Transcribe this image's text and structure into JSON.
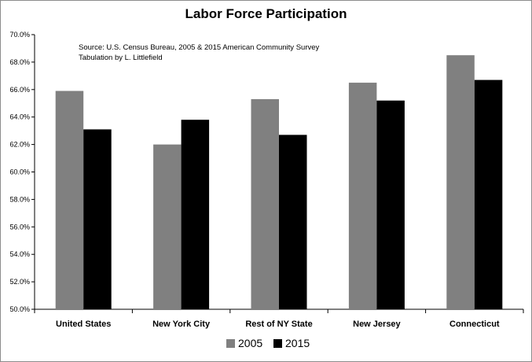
{
  "chart_data": {
    "type": "bar",
    "title": "Labor Force Participation",
    "annotation_lines": [
      "Source:  U.S. Census Bureau, 2005 & 2015 American Community Survey",
      "Tabulation by L. Littlefield"
    ],
    "categories": [
      "United States",
      "New York City",
      "Rest of NY State",
      "New Jersey",
      "Connecticut"
    ],
    "series": [
      {
        "name": "2005",
        "color": "#808080",
        "values": [
          65.9,
          62.0,
          65.3,
          66.5,
          68.5
        ]
      },
      {
        "name": "2015",
        "color": "#000000",
        "values": [
          63.1,
          63.8,
          62.7,
          65.2,
          66.7
        ]
      }
    ],
    "ylim": [
      50.0,
      70.0
    ],
    "y_ticks": [
      "50.0%",
      "52.0%",
      "54.0%",
      "56.0%",
      "58.0%",
      "60.0%",
      "62.0%",
      "64.0%",
      "66.0%",
      "68.0%",
      "70.0%"
    ],
    "grid": false,
    "legend_position": "bottom"
  }
}
